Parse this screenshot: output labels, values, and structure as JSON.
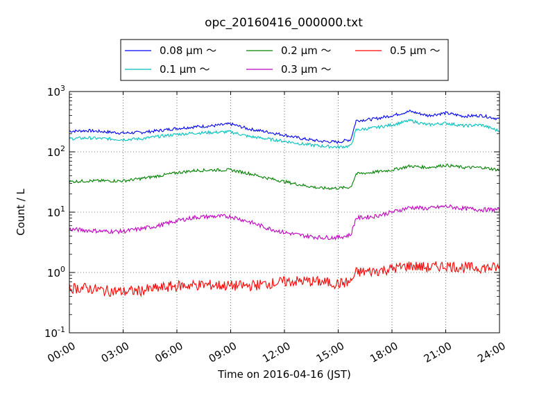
{
  "chart_data": {
    "type": "line",
    "title": "opc_20160416_000000.txt",
    "xlabel": "Time on 2016-04-16 (JST)",
    "ylabel": "Count / L",
    "y_scale": "log",
    "ylim": [
      0.1,
      1000
    ],
    "y_ticks": [
      {
        "value": 0.1,
        "base": "10",
        "exp": "-1"
      },
      {
        "value": 1,
        "base": "10",
        "exp": "0"
      },
      {
        "value": 10,
        "base": "10",
        "exp": "1"
      },
      {
        "value": 100,
        "base": "10",
        "exp": "2"
      },
      {
        "value": 1000,
        "base": "10",
        "exp": "3"
      }
    ],
    "x_ticks": [
      "00:00",
      "03:00",
      "06:00",
      "09:00",
      "12:00",
      "15:00",
      "18:00",
      "21:00",
      "24:00"
    ],
    "grid": true,
    "legend_position": "top",
    "x_hours": [
      0,
      1,
      2,
      3,
      4,
      5,
      6,
      7,
      8,
      9,
      10,
      11,
      12,
      13,
      14,
      15,
      15.7,
      16,
      17,
      18,
      19,
      20,
      21,
      22,
      23,
      24
    ],
    "series": [
      {
        "name": "0.08 µm ～",
        "color": "#0000ff",
        "values": [
          220,
          225,
          215,
          205,
          210,
          225,
          245,
          260,
          270,
          290,
          240,
          215,
          190,
          165,
          150,
          145,
          160,
          330,
          350,
          400,
          470,
          400,
          440,
          390,
          400,
          350
        ]
      },
      {
        "name": "0.1 µm ～",
        "color": "#00bfbf",
        "values": [
          165,
          170,
          165,
          160,
          165,
          180,
          195,
          205,
          210,
          215,
          180,
          165,
          150,
          135,
          125,
          120,
          125,
          230,
          250,
          280,
          330,
          280,
          300,
          270,
          280,
          220
        ]
      },
      {
        "name": "0.2 µm ～",
        "color": "#008000",
        "values": [
          32,
          33,
          33,
          33,
          36,
          40,
          45,
          49,
          50,
          50,
          44,
          37,
          32,
          28,
          25,
          25,
          26,
          43,
          46,
          50,
          58,
          55,
          60,
          55,
          55,
          50
        ]
      },
      {
        "name": "0.3 µm ～",
        "color": "#bf00bf",
        "values": [
          5.2,
          5.0,
          4.8,
          4.8,
          5.3,
          6.0,
          7.2,
          8.2,
          8.5,
          8.5,
          7.0,
          5.5,
          4.6,
          4.1,
          3.8,
          3.8,
          4.2,
          8.0,
          8.5,
          10.0,
          12.0,
          11.5,
          12.5,
          11.5,
          11.0,
          11.0
        ]
      },
      {
        "name": "0.5 µm ～",
        "color": "#ff0000",
        "values": [
          0.55,
          0.55,
          0.5,
          0.48,
          0.5,
          0.55,
          0.6,
          0.62,
          0.62,
          0.6,
          0.6,
          0.65,
          0.7,
          0.72,
          0.7,
          0.65,
          0.7,
          1.0,
          1.05,
          1.15,
          1.3,
          1.2,
          1.3,
          1.2,
          1.2,
          1.2
        ]
      }
    ]
  }
}
